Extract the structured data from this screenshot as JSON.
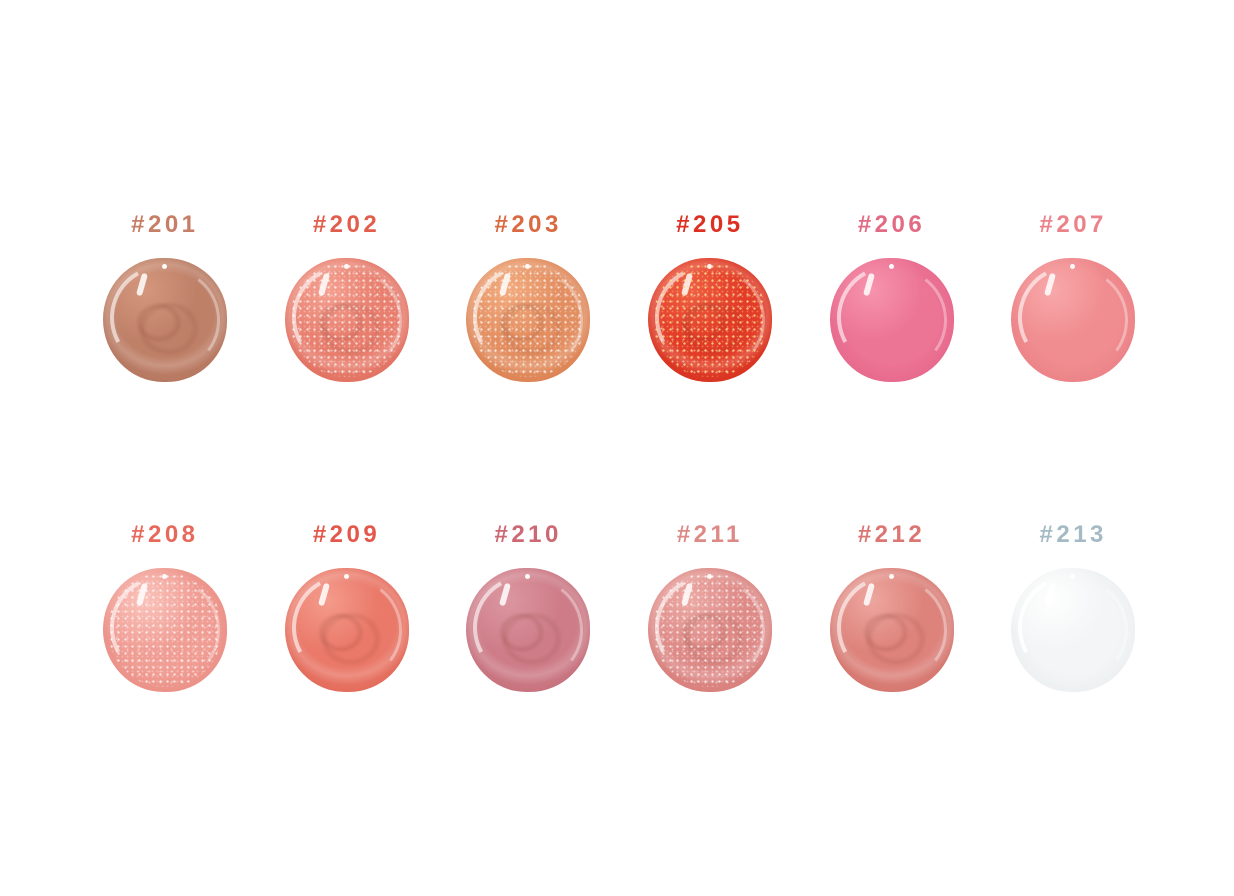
{
  "page": {
    "background": "#ffffff",
    "rows": 2,
    "columns": 6
  },
  "swatches": [
    {
      "label": "#201",
      "texture": "swirl",
      "colors": {
        "label": "#c67e66",
        "base": "#bf8068",
        "deep": "#ac7058",
        "light": "#d4977c"
      }
    },
    {
      "label": "#202",
      "texture": "glitter swirl",
      "colors": {
        "label": "#e25e4c",
        "base": "#e87e6e",
        "deep": "#dc6757",
        "light": "#f4a090"
      }
    },
    {
      "label": "#203",
      "texture": "swirl glitter",
      "colors": {
        "label": "#d96a41",
        "base": "#e38e60",
        "deep": "#d67a4a",
        "light": "#f2ab7e"
      }
    },
    {
      "label": "#205",
      "texture": "swirl glitter-gold",
      "colors": {
        "label": "#dd2f22",
        "base": "#e23b28",
        "deep": "#cf2d1b",
        "light": "#ef5f44"
      }
    },
    {
      "label": "#206",
      "texture": "cream",
      "colors": {
        "label": "#e26a84",
        "base": "#ec7495",
        "deep": "#e26085",
        "light": "#f693ad"
      }
    },
    {
      "label": "#207",
      "texture": "cream",
      "colors": {
        "label": "#ec8289",
        "base": "#f08d90",
        "deep": "#e67a7f",
        "light": "#f8a8aa"
      }
    },
    {
      "label": "#208",
      "texture": "glitter",
      "colors": {
        "label": "#e6695c",
        "base": "#f09d94",
        "deep": "#e5857b",
        "light": "#fac2ba"
      }
    },
    {
      "label": "#209",
      "texture": "swirl",
      "colors": {
        "label": "#e3584a",
        "base": "#ea7969",
        "deep": "#dd6050",
        "light": "#f49b8c"
      }
    },
    {
      "label": "#210",
      "texture": "swirl",
      "colors": {
        "label": "#cb6873",
        "base": "#ce7d88",
        "deep": "#bf6975",
        "light": "#dc96a0"
      }
    },
    {
      "label": "#211",
      "texture": "glitter swirl",
      "colors": {
        "label": "#dd8a87",
        "base": "#de8a87",
        "deep": "#d27672",
        "light": "#eca8a3"
      }
    },
    {
      "label": "#212",
      "texture": "swirl",
      "colors": {
        "label": "#db7673",
        "base": "#dd837c",
        "deep": "#cd6c64",
        "light": "#eda69e"
      }
    },
    {
      "label": "#213",
      "texture": "clear",
      "colors": {
        "label": "#a4bbc5",
        "base": "#f3f5f6",
        "deep": "#e7ebed",
        "light": "#fefefe"
      }
    }
  ]
}
